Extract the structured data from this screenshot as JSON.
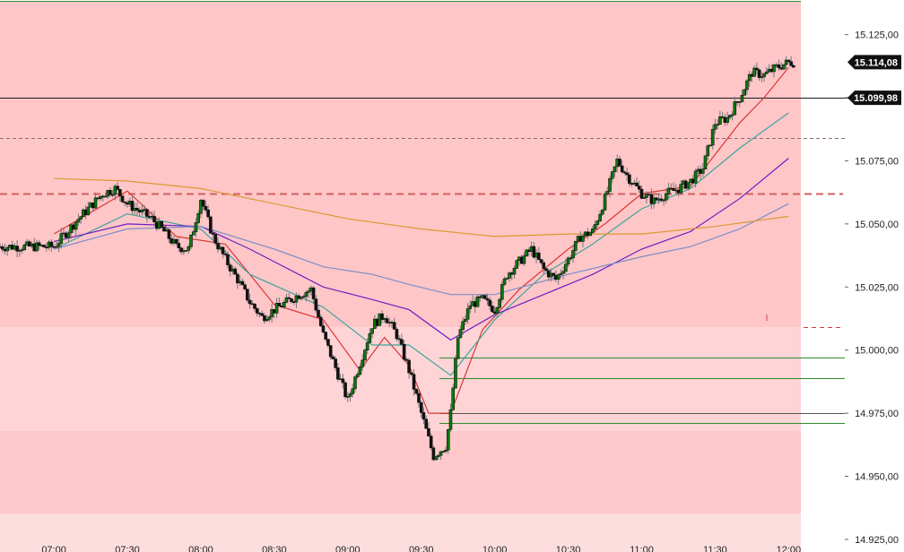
{
  "chart_data": {
    "type": "candlestick",
    "title": "",
    "x_ticks": [
      "07:00",
      "07:30",
      "08:00",
      "08:30",
      "09:00",
      "09:30",
      "10:00",
      "10:30",
      "11:00",
      "11:30",
      "12:00"
    ],
    "y_ticks": [
      "15.125,00",
      "15.100,00",
      "15.075,00",
      "15.050,00",
      "15.025,00",
      "15.000,00",
      "14.975,00",
      "14.950,00",
      "14.925,00"
    ],
    "y_tick_values": [
      15125,
      15100,
      15075,
      15050,
      15025,
      15000,
      14975,
      14950,
      14925
    ],
    "ylim": [
      14920,
      15138
    ],
    "last_price_label": "15.114,08",
    "last_price": 15114.08,
    "level_label": "15.099,98",
    "level_price": 15099.98,
    "zones": [
      {
        "from": 15009,
        "to": 15138,
        "color": "#ffc6c8"
      },
      {
        "from": 14968,
        "to": 15009,
        "color": "#ffd4d6"
      },
      {
        "from": 14935,
        "to": 14968,
        "color": "#ffc9cb"
      },
      {
        "from": 14920,
        "to": 14935,
        "color": "#fcdedf"
      }
    ],
    "levels": [
      {
        "price": 15099.98,
        "style": "solid",
        "color": "#1a1a1a"
      },
      {
        "price": 15084,
        "style": "dashed",
        "color": "#8c6e6e"
      },
      {
        "price": 15062,
        "style": "dashed-thick",
        "color": "#d06060"
      },
      {
        "price": 15009,
        "style": "dashed-short",
        "color": "#d04040"
      },
      {
        "price": 14997,
        "style": "solid",
        "color": "#2e8b2e"
      },
      {
        "price": 14989,
        "style": "solid",
        "color": "#2e8b2e"
      },
      {
        "price": 14975,
        "style": "solid",
        "color": "#555555"
      },
      {
        "price": 14971,
        "style": "solid",
        "color": "#2e8b2e"
      }
    ],
    "close_path": [
      [
        "07:00",
        15041
      ],
      [
        "07:10",
        15052
      ],
      [
        "07:20",
        15062
      ],
      [
        "07:25",
        15064
      ],
      [
        "07:30",
        15058
      ],
      [
        "07:40",
        15052
      ],
      [
        "07:45",
        15047
      ],
      [
        "07:50",
        15041
      ],
      [
        "07:55",
        15040
      ],
      [
        "08:00",
        15060
      ],
      [
        "08:05",
        15045
      ],
      [
        "08:10",
        15036
      ],
      [
        "08:15",
        15028
      ],
      [
        "08:20",
        15019
      ],
      [
        "08:25",
        15013
      ],
      [
        "08:30",
        15016
      ],
      [
        "08:40",
        15022
      ],
      [
        "08:45",
        15024
      ],
      [
        "08:50",
        15006
      ],
      [
        "09:00",
        14980
      ],
      [
        "09:05",
        14995
      ],
      [
        "09:10",
        15010
      ],
      [
        "09:15",
        15014
      ],
      [
        "09:20",
        15006
      ],
      [
        "09:25",
        14992
      ],
      [
        "09:30",
        14975
      ],
      [
        "09:35",
        14958
      ],
      [
        "09:40",
        14962
      ],
      [
        "09:42",
        14975
      ],
      [
        "09:45",
        15005
      ],
      [
        "09:50",
        15018
      ],
      [
        "09:55",
        15020
      ],
      [
        "10:00",
        15016
      ],
      [
        "10:05",
        15030
      ],
      [
        "10:10",
        15035
      ],
      [
        "10:15",
        15040
      ],
      [
        "10:20",
        15032
      ],
      [
        "10:25",
        15028
      ],
      [
        "10:30",
        15036
      ],
      [
        "10:35",
        15045
      ],
      [
        "10:40",
        15047
      ],
      [
        "10:45",
        15060
      ],
      [
        "10:50",
        15075
      ],
      [
        "10:55",
        15068
      ],
      [
        "11:00",
        15062
      ],
      [
        "11:05",
        15059
      ],
      [
        "11:10",
        15062
      ],
      [
        "11:15",
        15064
      ],
      [
        "11:20",
        15067
      ],
      [
        "11:25",
        15072
      ],
      [
        "11:30",
        15090
      ],
      [
        "11:35",
        15092
      ],
      [
        "11:40",
        15100
      ],
      [
        "11:45",
        15110
      ],
      [
        "11:50",
        15109
      ],
      [
        "11:55",
        15112
      ],
      [
        "12:00",
        15114
      ]
    ],
    "series": [
      {
        "color": "#d93838",
        "values": [
          [
            "07:00",
            15046
          ],
          [
            "07:30",
            15063
          ],
          [
            "07:50",
            15045
          ],
          [
            "08:10",
            15042
          ],
          [
            "08:30",
            15018
          ],
          [
            "08:50",
            15012
          ],
          [
            "09:05",
            14992
          ],
          [
            "09:15",
            15005
          ],
          [
            "09:25",
            14994
          ],
          [
            "09:33",
            14975
          ],
          [
            "09:42",
            14975
          ],
          [
            "09:55",
            15008
          ],
          [
            "10:10",
            15024
          ],
          [
            "10:30",
            15040
          ],
          [
            "10:45",
            15050
          ],
          [
            "11:00",
            15062
          ],
          [
            "11:20",
            15065
          ],
          [
            "11:40",
            15090
          ],
          [
            "11:50",
            15100
          ],
          [
            "12:00",
            15112
          ]
        ]
      },
      {
        "color": "#3fa59a",
        "values": [
          [
            "07:00",
            15040
          ],
          [
            "07:30",
            15054
          ],
          [
            "08:00",
            15048
          ],
          [
            "08:20",
            15030
          ],
          [
            "08:50",
            15017
          ],
          [
            "09:10",
            15002
          ],
          [
            "09:25",
            15002
          ],
          [
            "09:42",
            14990
          ],
          [
            "10:00",
            15012
          ],
          [
            "10:20",
            15030
          ],
          [
            "10:40",
            15042
          ],
          [
            "11:00",
            15056
          ],
          [
            "11:20",
            15064
          ],
          [
            "11:40",
            15080
          ],
          [
            "12:00",
            15094
          ]
        ]
      },
      {
        "color": "#6b1fc2",
        "values": [
          [
            "07:00",
            15043
          ],
          [
            "07:30",
            15050
          ],
          [
            "08:00",
            15049
          ],
          [
            "08:20",
            15040
          ],
          [
            "08:50",
            15025
          ],
          [
            "09:10",
            15020
          ],
          [
            "09:25",
            15016
          ],
          [
            "09:42",
            15004
          ],
          [
            "10:00",
            15014
          ],
          [
            "10:20",
            15022
          ],
          [
            "10:40",
            15030
          ],
          [
            "11:00",
            15040
          ],
          [
            "11:20",
            15047
          ],
          [
            "11:40",
            15060
          ],
          [
            "12:00",
            15076
          ]
        ]
      },
      {
        "color": "#7a8fc8",
        "values": [
          [
            "07:00",
            15040
          ],
          [
            "07:30",
            15048
          ],
          [
            "08:00",
            15049
          ],
          [
            "08:30",
            15040
          ],
          [
            "08:50",
            15033
          ],
          [
            "09:10",
            15030
          ],
          [
            "09:25",
            15026
          ],
          [
            "09:42",
            15022
          ],
          [
            "10:00",
            15022
          ],
          [
            "10:30",
            15030
          ],
          [
            "11:00",
            15037
          ],
          [
            "11:20",
            15041
          ],
          [
            "11:40",
            15048
          ],
          [
            "12:00",
            15058
          ]
        ]
      },
      {
        "color": "#d99a30",
        "values": [
          [
            "07:00",
            15068
          ],
          [
            "07:30",
            15067
          ],
          [
            "08:00",
            15064
          ],
          [
            "08:30",
            15058
          ],
          [
            "09:00",
            15052
          ],
          [
            "09:30",
            15048
          ],
          [
            "10:00",
            15045
          ],
          [
            "10:30",
            15046
          ],
          [
            "11:00",
            15046
          ],
          [
            "11:30",
            15049
          ],
          [
            "12:00",
            15053
          ]
        ]
      }
    ]
  }
}
